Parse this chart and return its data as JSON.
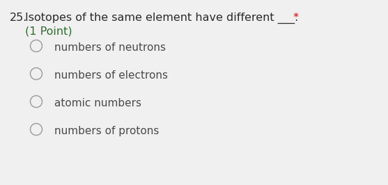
{
  "background_color": "#f0f0f0",
  "question_number": "25.",
  "question_text_main": "Isotopes of the same element have different ___.",
  "asterisk": " *",
  "point_text": "(1 Point)",
  "options": [
    "numbers of neutrons",
    "numbers of electrons",
    "atomic numbers",
    "numbers of protons"
  ],
  "question_color": "#2a2a2a",
  "point_color": "#2d6e2d",
  "asterisk_color": "#cc0000",
  "option_color": "#4a4a4a",
  "circle_edge_color": "#a0a0a0",
  "font_size_question": 11.5,
  "font_size_point": 11.5,
  "font_size_option": 11.0,
  "fig_width": 5.57,
  "fig_height": 2.66,
  "dpi": 100
}
